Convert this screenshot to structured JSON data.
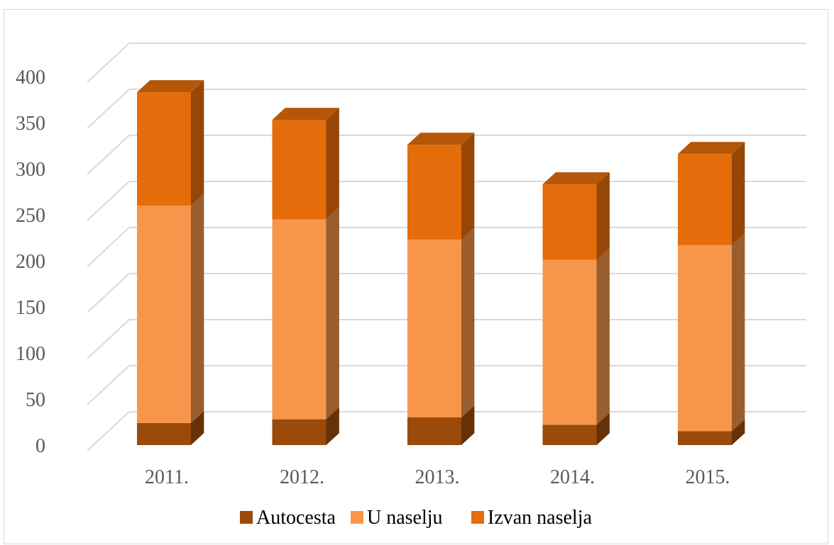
{
  "chart_data": {
    "type": "bar",
    "stacked": true,
    "three_d": true,
    "categories": [
      "2011.",
      "2012.",
      "2013.",
      "2014.",
      "2015."
    ],
    "series": [
      {
        "name": "Autocesta",
        "values": [
          24,
          28,
          30,
          22,
          15
        ],
        "color": "#9a4a0a"
      },
      {
        "name": "U naselju",
        "values": [
          236,
          217,
          193,
          179,
          202
        ],
        "color": "#f7964a"
      },
      {
        "name": "Izvan naselja",
        "values": [
          123,
          108,
          103,
          82,
          99
        ],
        "color": "#e46c0a"
      }
    ],
    "ylim": [
      0,
      400
    ],
    "yticks": [
      "0",
      "50",
      "100",
      "150",
      "200",
      "250",
      "300",
      "350",
      "400"
    ],
    "grid": true,
    "legend_position": "bottom"
  }
}
